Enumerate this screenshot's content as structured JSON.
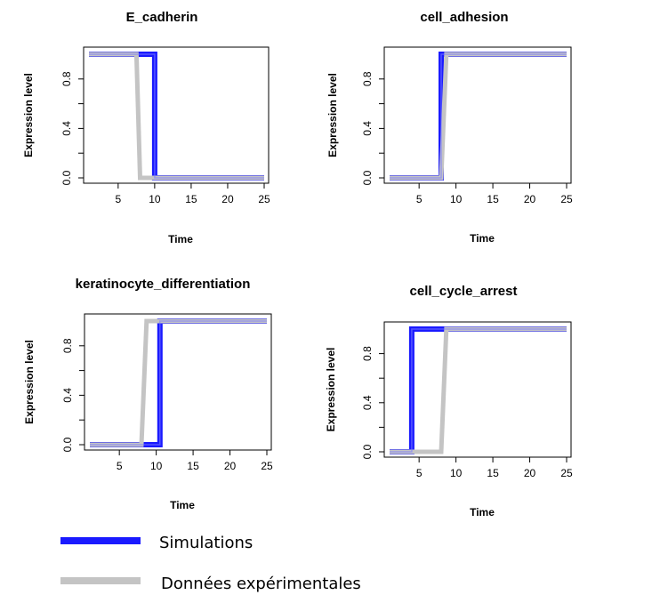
{
  "colors": {
    "simulation": "#1a1aff",
    "simulation_inner": "#7d7dff",
    "experimental": "#c4c4c4"
  },
  "legend": {
    "items": [
      {
        "label": "Simulations",
        "color": "#1a1aff"
      },
      {
        "label": "Données expérimentales",
        "color": "#c4c4c4"
      }
    ]
  },
  "chart_data": [
    {
      "type": "line",
      "title": "E_cadherin",
      "xlabel": "Time",
      "ylabel": "Expression level",
      "xlim": [
        1,
        25
      ],
      "ylim": [
        0,
        1
      ],
      "xticks": [
        5,
        10,
        15,
        20,
        25
      ],
      "yticks": [
        0.0,
        0.4,
        0.8
      ],
      "ytick_labels": [
        "0.0",
        "0.4",
        "0.8"
      ],
      "series": [
        {
          "name": "Simulations",
          "x": [
            1,
            10,
            10,
            25
          ],
          "y": [
            1,
            1,
            0,
            0
          ]
        },
        {
          "name": "Données expérimentales",
          "x": [
            1,
            7.5,
            8,
            25
          ],
          "y": [
            1,
            1,
            0,
            0
          ]
        }
      ]
    },
    {
      "type": "line",
      "title": "cell_adhesion",
      "xlabel": "Time",
      "ylabel": "Expression level",
      "xlim": [
        1,
        25
      ],
      "ylim": [
        0,
        1
      ],
      "xticks": [
        5,
        10,
        15,
        20,
        25
      ],
      "yticks": [
        0.0,
        0.4,
        0.8
      ],
      "ytick_labels": [
        "0.0",
        "0.4",
        "0.8"
      ],
      "series": [
        {
          "name": "Simulations",
          "x": [
            1,
            8,
            8,
            25
          ],
          "y": [
            0,
            0,
            1,
            1
          ]
        },
        {
          "name": "Données expérimentales",
          "x": [
            1,
            8,
            8.7,
            25
          ],
          "y": [
            0,
            0,
            1,
            1
          ]
        }
      ]
    },
    {
      "type": "line",
      "title": "keratinocyte_differentiation",
      "xlabel": "Time",
      "ylabel": "Expression level",
      "xlim": [
        1,
        25
      ],
      "ylim": [
        0,
        1
      ],
      "xticks": [
        5,
        10,
        15,
        20,
        25
      ],
      "yticks": [
        0.0,
        0.4,
        0.8
      ],
      "ytick_labels": [
        "0.0",
        "0.4",
        "0.8"
      ],
      "series": [
        {
          "name": "Simulations",
          "x": [
            1,
            10.5,
            10.5,
            25
          ],
          "y": [
            0,
            0,
            1,
            1
          ]
        },
        {
          "name": "Données expérimentales",
          "x": [
            1,
            8,
            8.7,
            25
          ],
          "y": [
            0,
            0,
            1,
            1
          ]
        }
      ]
    },
    {
      "type": "line",
      "title": "cell_cycle_arrest",
      "xlabel": "Time",
      "ylabel": "Expression level",
      "xlim": [
        1,
        25
      ],
      "ylim": [
        0,
        1
      ],
      "xticks": [
        5,
        10,
        15,
        20,
        25
      ],
      "yticks": [
        0.0,
        0.4,
        0.8
      ],
      "ytick_labels": [
        "0.0",
        "0.4",
        "0.8"
      ],
      "series": [
        {
          "name": "Simulations",
          "x": [
            1,
            4,
            4,
            25
          ],
          "y": [
            0,
            0,
            1,
            1
          ]
        },
        {
          "name": "Données expérimentales",
          "x": [
            1,
            8,
            8.7,
            25
          ],
          "y": [
            0,
            0,
            1,
            1
          ]
        }
      ]
    }
  ]
}
